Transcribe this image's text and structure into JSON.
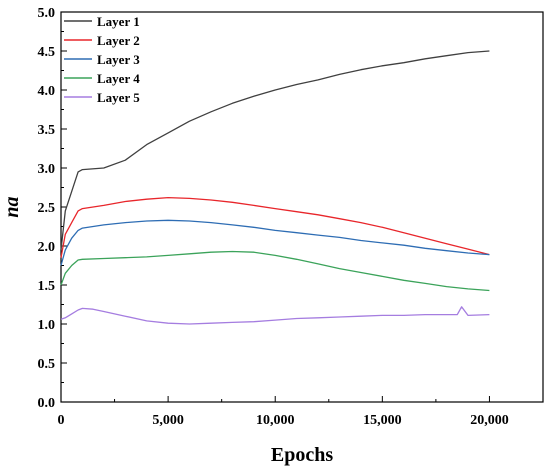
{
  "chart_data": {
    "type": "line",
    "xlabel": "Epochs",
    "ylabel": "na",
    "xlim": [
      0,
      22500
    ],
    "ylim": [
      0,
      5.0
    ],
    "xticks": [
      0,
      5000,
      10000,
      15000,
      20000
    ],
    "xtick_labels": [
      "0",
      "5,000",
      "10,000",
      "15,000",
      "20,000"
    ],
    "yticks": [
      0,
      0.5,
      1.0,
      1.5,
      2.0,
      2.5,
      3.0,
      3.5,
      4.0,
      4.5,
      5.0
    ],
    "ytick_labels": [
      "0.0",
      "0.5",
      "1.0",
      "1.5",
      "2.0",
      "2.5",
      "3.0",
      "3.5",
      "4.0",
      "4.5",
      "5.0"
    ],
    "grid": false,
    "legend_position": "top-left",
    "series": [
      {
        "name": "Layer 1",
        "color": "#404040",
        "x": [
          0,
          200,
          500,
          800,
          1000,
          2000,
          3000,
          4000,
          5000,
          6000,
          7000,
          8000,
          9000,
          10000,
          11000,
          12000,
          13000,
          14000,
          15000,
          16000,
          17000,
          18000,
          19000,
          20000
        ],
        "y": [
          1.95,
          2.45,
          2.7,
          2.95,
          2.98,
          3.0,
          3.1,
          3.3,
          3.45,
          3.6,
          3.72,
          3.83,
          3.92,
          4.0,
          4.07,
          4.13,
          4.2,
          4.26,
          4.31,
          4.35,
          4.4,
          4.44,
          4.48,
          4.5
        ]
      },
      {
        "name": "Layer 2",
        "color": "#e8262b",
        "x": [
          0,
          200,
          500,
          800,
          1000,
          2000,
          3000,
          4000,
          5000,
          6000,
          7000,
          8000,
          9000,
          10000,
          11000,
          12000,
          13000,
          14000,
          15000,
          16000,
          17000,
          18000,
          19000,
          20000
        ],
        "y": [
          1.85,
          2.15,
          2.3,
          2.45,
          2.48,
          2.52,
          2.57,
          2.6,
          2.62,
          2.61,
          2.59,
          2.56,
          2.52,
          2.48,
          2.44,
          2.4,
          2.35,
          2.3,
          2.24,
          2.17,
          2.1,
          2.03,
          1.96,
          1.89
        ]
      },
      {
        "name": "Layer 3",
        "color": "#2e6db4",
        "x": [
          0,
          200,
          500,
          800,
          1000,
          2000,
          3000,
          4000,
          5000,
          6000,
          7000,
          8000,
          9000,
          10000,
          11000,
          12000,
          13000,
          14000,
          15000,
          16000,
          17000,
          18000,
          19000,
          20000
        ],
        "y": [
          1.75,
          1.95,
          2.1,
          2.2,
          2.23,
          2.27,
          2.3,
          2.32,
          2.33,
          2.32,
          2.3,
          2.27,
          2.24,
          2.2,
          2.17,
          2.14,
          2.11,
          2.07,
          2.04,
          2.01,
          1.97,
          1.94,
          1.91,
          1.89
        ]
      },
      {
        "name": "Layer 4",
        "color": "#3ba35a",
        "x": [
          0,
          200,
          500,
          800,
          1000,
          2000,
          3000,
          4000,
          5000,
          6000,
          7000,
          8000,
          9000,
          10000,
          11000,
          12000,
          13000,
          14000,
          15000,
          16000,
          17000,
          18000,
          19000,
          20000
        ],
        "y": [
          1.5,
          1.65,
          1.75,
          1.82,
          1.83,
          1.84,
          1.85,
          1.86,
          1.88,
          1.9,
          1.92,
          1.93,
          1.92,
          1.88,
          1.83,
          1.77,
          1.71,
          1.66,
          1.61,
          1.56,
          1.52,
          1.48,
          1.45,
          1.43
        ]
      },
      {
        "name": "Layer 5",
        "color": "#a57de0",
        "x": [
          0,
          200,
          500,
          800,
          1000,
          1500,
          2000,
          3000,
          4000,
          5000,
          6000,
          7000,
          8000,
          9000,
          10000,
          11000,
          12000,
          13000,
          14000,
          15000,
          16000,
          17000,
          18000,
          18500,
          18700,
          19000,
          20000
        ],
        "y": [
          1.06,
          1.08,
          1.13,
          1.18,
          1.2,
          1.19,
          1.16,
          1.1,
          1.04,
          1.01,
          1.0,
          1.01,
          1.02,
          1.03,
          1.05,
          1.07,
          1.08,
          1.09,
          1.1,
          1.11,
          1.11,
          1.12,
          1.12,
          1.12,
          1.22,
          1.11,
          1.12
        ]
      }
    ]
  }
}
